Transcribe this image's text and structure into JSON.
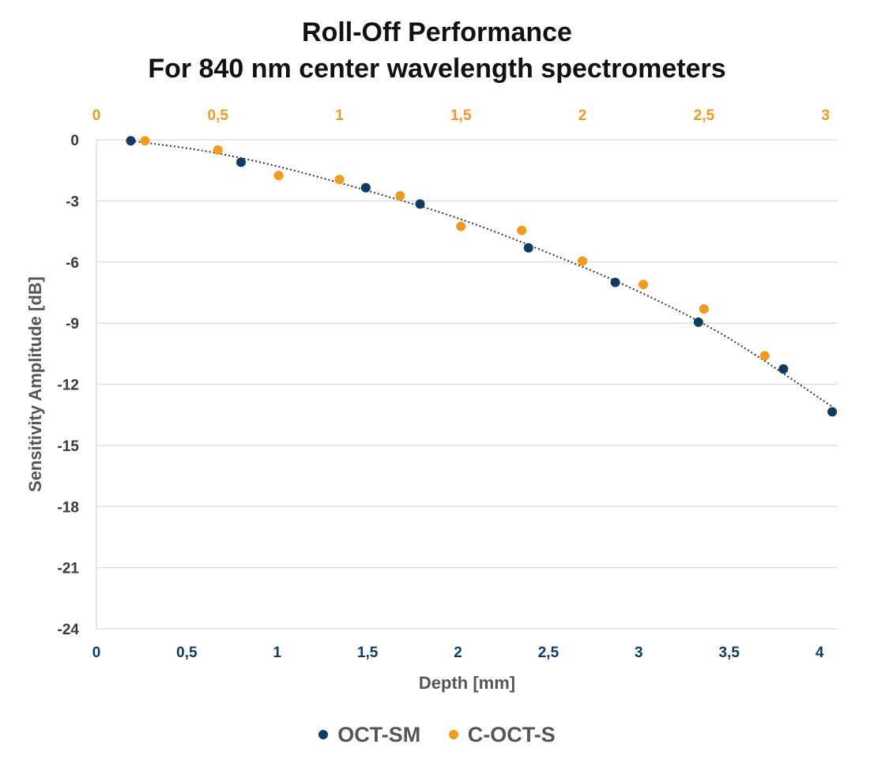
{
  "chart_data": {
    "type": "scatter",
    "title": "Roll-Off Performance",
    "subtitle": "For 840 nm center wavelength spectrometers",
    "xlabel": "Depth [mm]",
    "ylabel": "Sensitivity Amplitude [dB]",
    "xlim": [
      0,
      4.1
    ],
    "ylim": [
      -24,
      0
    ],
    "x_ticks": [
      "0",
      "0,5",
      "1",
      "1,5",
      "2",
      "2,5",
      "3",
      "3,5",
      "4"
    ],
    "y_ticks": [
      "0",
      "-3",
      "-6",
      "-9",
      "-12",
      "-15",
      "-18",
      "-21",
      "-24"
    ],
    "x2lim": [
      0,
      3.05
    ],
    "x2_ticks": [
      "0",
      "0,5",
      "1",
      "1,5",
      "2",
      "2,5",
      "3"
    ],
    "grid": true,
    "legend_position": "bottom",
    "series": [
      {
        "name": "OCT-SM",
        "color": "#0f3a63",
        "axis": "bottom",
        "x": [
          0.19,
          0.8,
          1.49,
          1.79,
          2.39,
          2.87,
          3.33,
          3.8,
          4.07
        ],
        "y": [
          -0.05,
          -1.1,
          -2.35,
          -3.15,
          -5.3,
          -7.0,
          -8.95,
          -11.25,
          -13.35
        ]
      },
      {
        "name": "C-OCT-S",
        "color": "#f39a1e",
        "axis": "top",
        "x": [
          0.2,
          0.5,
          0.75,
          1.0,
          1.25,
          1.5,
          1.75,
          2.0,
          2.25,
          2.5,
          2.75
        ],
        "y": [
          -0.05,
          -0.5,
          -1.75,
          -1.95,
          -2.75,
          -4.25,
          -4.45,
          -5.95,
          -7.1,
          -8.3,
          -10.6
        ]
      }
    ],
    "trendline": {
      "style": "dotted",
      "color": "#333333",
      "x": [
        0.19,
        0.6,
        1.0,
        1.5,
        2.0,
        2.5,
        3.0,
        3.5,
        4.07
      ],
      "y": [
        -0.05,
        -0.55,
        -1.3,
        -2.5,
        -3.85,
        -5.55,
        -7.45,
        -9.75,
        -13.1
      ]
    }
  }
}
